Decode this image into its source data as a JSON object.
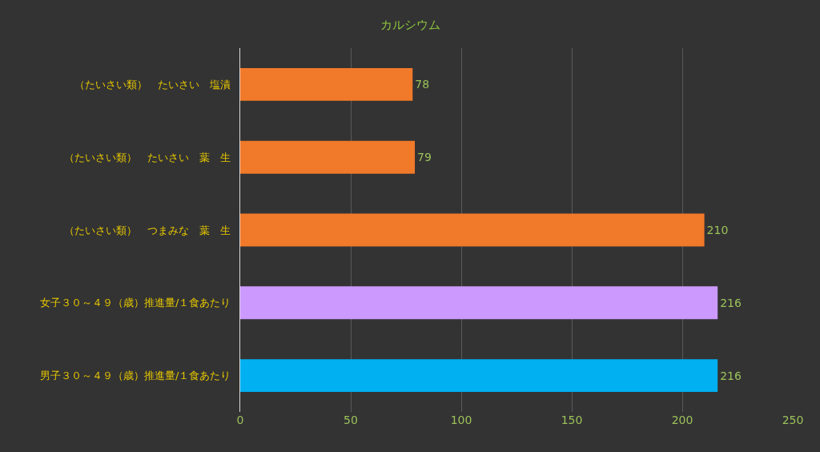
{
  "chart_data": {
    "type": "bar",
    "orientation": "horizontal",
    "title": "カルシウム",
    "categories": [
      "（たいさい類）　たいさい　塩漬",
      "（たいさい類）　たいさい　葉　生",
      "（たいさい類）　つまみな　葉　生",
      "女子３０～４９（歳）推進量/１食あたり",
      "男子３０～４９（歳）推進量/１食あたり"
    ],
    "values": [
      78,
      79,
      210,
      216,
      216
    ],
    "colors": [
      "#f07a2a",
      "#f07a2a",
      "#f07a2a",
      "#cc99ff",
      "#00b0f0"
    ],
    "xlim": [
      0,
      250
    ],
    "xticks": [
      0,
      50,
      100,
      150,
      200,
      250
    ],
    "grid": "x",
    "data_labels": true
  }
}
